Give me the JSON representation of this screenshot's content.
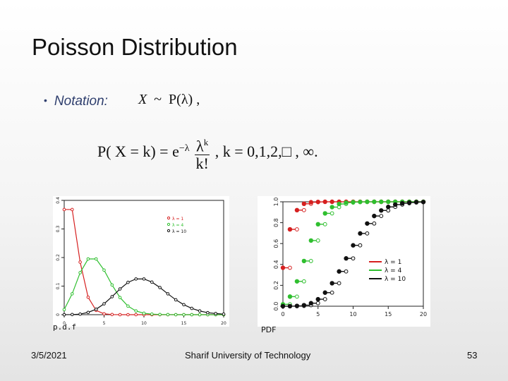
{
  "slide": {
    "title": "Poisson Distribution",
    "bullet_label": "Notation:",
    "notation_expr": {
      "lhs": "X",
      "tilde": "~",
      "rhs": "P(λ) ,"
    },
    "formula": {
      "lhs": "P( X = k) = e",
      "exp": "−λ",
      "numerator": "λ",
      "numerator_exp": "k",
      "denominator": "k!",
      "tail": ",   k = 0,1,2,□   , ∞."
    },
    "captions": {
      "pmf": "p.d.f",
      "cdf": "PDF"
    },
    "footer": {
      "date": "3/5/2021",
      "organization": "Sharif University of Technology",
      "page": "53"
    }
  },
  "chart_data": [
    {
      "type": "line",
      "title": "",
      "xlabel": "",
      "ylabel": "",
      "xlim": [
        0,
        20
      ],
      "ylim": [
        0,
        0.4
      ],
      "x_ticks": [
        "0",
        "5",
        "10",
        "15",
        "20"
      ],
      "y_ticks": [
        "0",
        "0.1",
        "0.2",
        "0.3",
        "0.4"
      ],
      "legend_position": "top-right",
      "x": [
        0,
        1,
        2,
        3,
        4,
        5,
        6,
        7,
        8,
        9,
        10,
        11,
        12,
        13,
        14,
        15,
        16,
        17,
        18,
        19,
        20
      ],
      "series": [
        {
          "name": "λ = 1",
          "color": "#d62020",
          "marker": "square",
          "values": [
            0.368,
            0.368,
            0.184,
            0.061,
            0.015,
            0.003,
            0.0005,
            0,
            0,
            0,
            0,
            0,
            0,
            0,
            0,
            0,
            0,
            0,
            0,
            0,
            0
          ]
        },
        {
          "name": "λ = 4",
          "color": "#2fbf2f",
          "marker": "triangle",
          "values": [
            0.018,
            0.073,
            0.147,
            0.195,
            0.195,
            0.156,
            0.104,
            0.06,
            0.03,
            0.013,
            0.005,
            0.002,
            0.0006,
            0.0002,
            0,
            0,
            0,
            0,
            0,
            0,
            0
          ]
        },
        {
          "name": "λ = 10",
          "color": "#111111",
          "marker": "circle",
          "values": [
            0,
            0.0005,
            0.002,
            0.008,
            0.019,
            0.038,
            0.063,
            0.09,
            0.113,
            0.125,
            0.125,
            0.114,
            0.095,
            0.073,
            0.052,
            0.035,
            0.022,
            0.013,
            0.007,
            0.004,
            0.002
          ]
        }
      ]
    },
    {
      "type": "scatter",
      "title": "",
      "xlabel": "",
      "ylabel": "",
      "xlim": [
        0,
        20
      ],
      "ylim": [
        0,
        1
      ],
      "x_ticks": [
        "0",
        "5",
        "10",
        "15",
        "20"
      ],
      "y_ticks": [
        "0.0",
        "0.2",
        "0.4",
        "0.6",
        "0.8",
        "1.0"
      ],
      "legend_position": "bottom-right",
      "x": [
        0,
        1,
        2,
        3,
        4,
        5,
        6,
        7,
        8,
        9,
        10,
        11,
        12,
        13,
        14,
        15,
        16,
        17,
        18,
        19,
        20
      ],
      "series": [
        {
          "name": "λ = 1",
          "color": "#d62020",
          "values": [
            0.368,
            0.736,
            0.92,
            0.981,
            0.996,
            0.999,
            1,
            1,
            1,
            1,
            1,
            1,
            1,
            1,
            1,
            1,
            1,
            1,
            1,
            1,
            1
          ]
        },
        {
          "name": "λ = 4",
          "color": "#2fbf2f",
          "values": [
            0.018,
            0.092,
            0.238,
            0.433,
            0.629,
            0.785,
            0.889,
            0.949,
            0.979,
            0.992,
            0.997,
            0.999,
            1,
            1,
            1,
            1,
            1,
            1,
            1,
            1,
            1
          ]
        },
        {
          "name": "λ = 10",
          "color": "#111111",
          "values": [
            0,
            0.0005,
            0.003,
            0.01,
            0.029,
            0.067,
            0.13,
            0.22,
            0.333,
            0.458,
            0.583,
            0.697,
            0.792,
            0.864,
            0.917,
            0.951,
            0.973,
            0.986,
            0.993,
            0.997,
            0.998
          ]
        }
      ]
    }
  ]
}
